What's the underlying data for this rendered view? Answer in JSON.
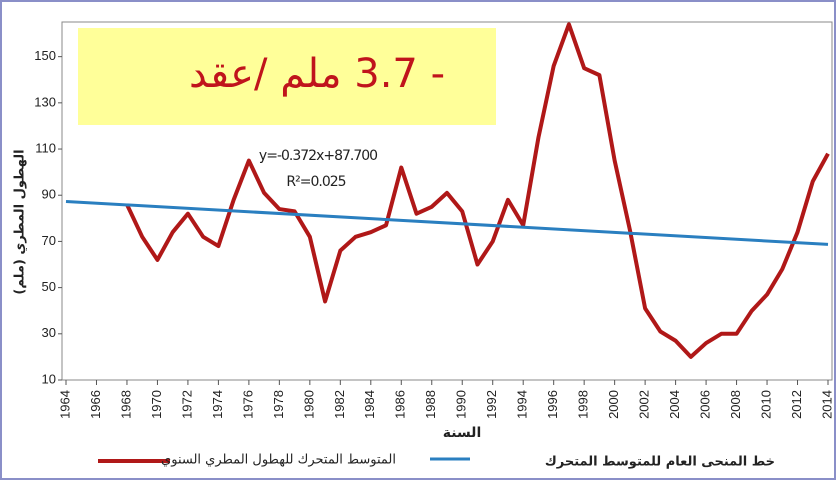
{
  "chart_data": {
    "type": "line",
    "annotation": "- 3.7  ملم /عقد",
    "equation": "y=-0.372x+87.700",
    "r_squared": "R²=0.025",
    "x_label": "السنة",
    "y_label": "الهطول المطري (ملم)",
    "xlim": [
      1964,
      2014
    ],
    "xticks": [
      1964,
      1966,
      1968,
      1970,
      1972,
      1974,
      1976,
      1978,
      1980,
      1982,
      1984,
      1986,
      1988,
      1990,
      1992,
      1994,
      1996,
      1998,
      2000,
      2002,
      2004,
      2006,
      2008,
      2010,
      2012,
      2014
    ],
    "ylim": [
      10,
      165
    ],
    "yticks": [
      10,
      30,
      50,
      70,
      90,
      110,
      130,
      150
    ],
    "grid": false,
    "series": [
      {
        "name": "المتوسط المتحرك للهطول المطري السنوي",
        "color": "#b01818",
        "x": [
          1968,
          1969,
          1970,
          1971,
          1972,
          1973,
          1974,
          1975,
          1976,
          1977,
          1978,
          1979,
          1980,
          1981,
          1982,
          1983,
          1984,
          1985,
          1986,
          1987,
          1988,
          1989,
          1990,
          1991,
          1992,
          1993,
          1994,
          1995,
          1996,
          1997,
          1998,
          1999,
          2000,
          2001,
          2002,
          2003,
          2004,
          2005,
          2006,
          2007,
          2008,
          2009,
          2010,
          2011,
          2012,
          2013,
          2014
        ],
        "values": [
          86,
          72,
          62,
          74,
          82,
          72,
          68,
          88,
          105,
          91,
          84,
          83,
          72,
          44,
          66,
          72,
          74,
          77,
          102,
          82,
          85,
          91,
          83,
          60,
          70,
          88,
          77,
          115,
          146,
          164,
          145,
          142,
          105,
          75,
          41,
          31,
          27,
          20,
          26,
          30,
          30,
          40,
          47,
          58,
          74,
          96,
          108
        ]
      },
      {
        "name": "خط المنحى العام للمتوسط المتحرك",
        "color": "#2a7fc0",
        "x": [
          1964,
          2014
        ],
        "values": [
          87.3,
          68.7
        ]
      }
    ]
  }
}
